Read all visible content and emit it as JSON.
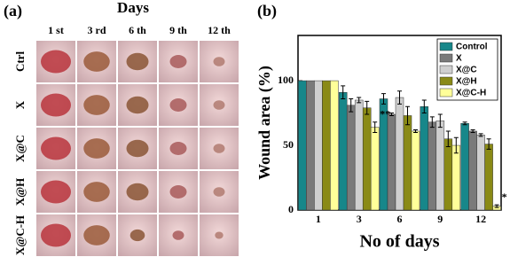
{
  "panel_a": {
    "label": "(a)",
    "title": "Days",
    "columns": [
      "1 st",
      "3 rd",
      "6 th",
      "9 th",
      "12 th"
    ],
    "rows": [
      "Ctrl",
      "X",
      "X@C",
      "X@H",
      "X@C-H"
    ]
  },
  "chart_data": {
    "type": "bar",
    "label": "(b)",
    "x_label": "No of days",
    "y_label": "Wound area (%)",
    "categories": [
      "1",
      "3",
      "6",
      "9",
      "12"
    ],
    "series": [
      {
        "name": "Control",
        "color": "#17878a",
        "values": [
          100,
          91,
          86,
          80,
          67
        ],
        "errors": [
          0,
          5,
          4,
          5,
          1
        ]
      },
      {
        "name": "X",
        "color": "#7a7a7a",
        "values": [
          100,
          81,
          74,
          68,
          61
        ],
        "errors": [
          0,
          5,
          1,
          4,
          1
        ]
      },
      {
        "name": "X@C",
        "color": "#cfcfcf",
        "values": [
          100,
          85,
          87,
          69,
          58
        ],
        "errors": [
          0,
          2,
          5,
          5,
          1
        ]
      },
      {
        "name": "X@H",
        "color": "#8a8a16",
        "values": [
          100,
          79,
          73,
          55,
          51
        ],
        "errors": [
          0,
          5,
          7,
          6,
          4
        ]
      },
      {
        "name": "X@C-H",
        "color": "#ffff99",
        "values": [
          100,
          64,
          61,
          50,
          3
        ],
        "errors": [
          0,
          4,
          1,
          6,
          1
        ]
      }
    ],
    "annotations": [
      "**",
      "*"
    ],
    "ylim": [
      0,
      135
    ],
    "yticks": [
      0,
      50,
      100
    ],
    "legend": "top-right"
  }
}
